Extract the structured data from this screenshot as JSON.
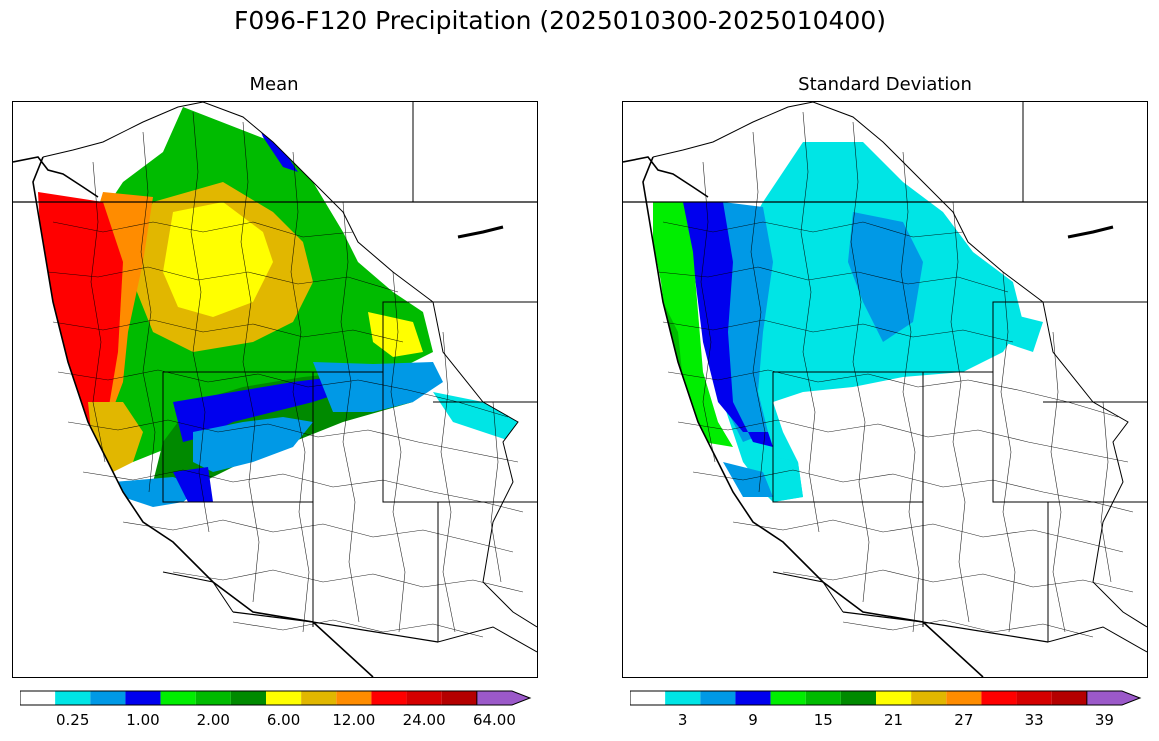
{
  "main_title": "F096-F120 Precipitation (2025010300-2025010400)",
  "panels": [
    {
      "title": "Mean",
      "colorbar": {
        "colors": [
          "#ffffff",
          "#00e5e5",
          "#0099e6",
          "#0000ee",
          "#00ee00",
          "#00bb00",
          "#008a00",
          "#ffff00",
          "#e1b700",
          "#ff8c00",
          "#ff0000",
          "#d50000",
          "#b40000",
          "#ff00ff",
          "#9b59c9"
        ],
        "tick_labels": [
          "0.25",
          "1.00",
          "2.00",
          "6.00",
          "12.00",
          "24.00",
          "64.00"
        ],
        "extend": "max"
      }
    },
    {
      "title": "Standard Deviation",
      "colorbar": {
        "colors": [
          "#ffffff",
          "#00e5e5",
          "#0099e6",
          "#0000ee",
          "#00ee00",
          "#00bb00",
          "#008a00",
          "#ffff00",
          "#e1b700",
          "#ff8c00",
          "#ff0000",
          "#d50000",
          "#b40000",
          "#ff00ff",
          "#9b59c9"
        ],
        "tick_labels": [
          "3",
          "9",
          "15",
          "21",
          "27",
          "33",
          "39"
        ],
        "extend": "max"
      }
    }
  ]
}
